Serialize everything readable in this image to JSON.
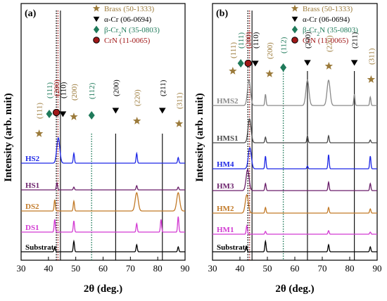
{
  "colors": {
    "brass": "#9b7a3a",
    "alpha_cr": "#000000",
    "beta_cr2n": "#1f7a5a",
    "crn": "#a01818",
    "HS2": "#1e28e6",
    "HS1": "#6a1f6a",
    "DS2": "#c27a28",
    "DS1": "#d23ad2",
    "Substrate": "#000000",
    "HMS2": "#8a8a8a",
    "HMS1": "#4a4a4a",
    "HM4": "#1e28e6",
    "HM3": "#6a1f6a",
    "HM2": "#c27a28",
    "HM1": "#d23ad2"
  },
  "legend": [
    {
      "key": "brass",
      "marker": "star-icon",
      "text": "Brass (50-1333)"
    },
    {
      "key": "alpha_cr",
      "marker": "triangle-down-icon",
      "text": "α-Cr (06-0694)"
    },
    {
      "key": "beta_cr2n",
      "marker": "diamond-icon",
      "text": "β-Cr",
      "sub": "2",
      "tail": "N (35-0803)"
    },
    {
      "key": "crn",
      "marker": "circle-icon",
      "text": "CrN (11-0065)"
    }
  ],
  "chart_data": [
    {
      "type": "line",
      "panel_label": "(a)",
      "xlabel": "2θ (deg.)",
      "ylabel": "Intensity (arb. nuit)",
      "xlim": [
        30,
        90
      ],
      "xticks": [
        30,
        40,
        50,
        60,
        70,
        80,
        90
      ],
      "y_ticks_shown": false,
      "reference_lines": [
        {
          "x": 42.9,
          "style": "dotted",
          "color": "#000000"
        },
        {
          "x": 43.5,
          "style": "dotted",
          "color": "#a01818"
        },
        {
          "x": 44.4,
          "style": "solid",
          "color": "#000000"
        },
        {
          "x": 55.8,
          "style": "dotted",
          "color": "#1f7a5a"
        },
        {
          "x": 64.6,
          "style": "solid",
          "color": "#000000"
        },
        {
          "x": 81.7,
          "style": "solid",
          "color": "#000000"
        }
      ],
      "peak_markers": [
        {
          "x": 36.6,
          "marker": "star-icon",
          "phase": "brass",
          "label": "(111)"
        },
        {
          "x": 40.3,
          "marker": "diamond-icon",
          "phase": "beta_cr2n",
          "label": "(111)"
        },
        {
          "x": 42.9,
          "marker": "circle-icon",
          "phase": "crn",
          "label": "(200)"
        },
        {
          "x": 45.3,
          "marker": "triangle-down-icon",
          "phase": "alpha_cr",
          "label": "(110)"
        },
        {
          "x": 49.3,
          "marker": "star-icon",
          "phase": "brass",
          "label": "(200)"
        },
        {
          "x": 55.8,
          "marker": "diamond-icon",
          "phase": "beta_cr2n",
          "label": "(112)"
        },
        {
          "x": 64.6,
          "marker": "triangle-down-icon",
          "phase": "alpha_cr",
          "label": "(200)"
        },
        {
          "x": 72.4,
          "marker": "star-icon",
          "phase": "brass",
          "label": "(220)"
        },
        {
          "x": 81.7,
          "marker": "triangle-down-icon",
          "phase": "alpha_cr",
          "label": "(211)"
        },
        {
          "x": 87.8,
          "marker": "star-icon",
          "phase": "brass",
          "label": "(311)"
        }
      ],
      "series": [
        {
          "name": "Substrate",
          "peaks": [
            [
              42.3,
              7
            ],
            [
              49.3,
              15
            ],
            [
              72.3,
              10
            ],
            [
              87.5,
              7
            ]
          ]
        },
        {
          "name": "DS1",
          "peaks": [
            [
              42.3,
              18
            ],
            [
              49.3,
              16
            ],
            [
              72.3,
              12
            ],
            [
              81.2,
              18
            ],
            [
              87.5,
              22
            ]
          ]
        },
        {
          "name": "DS2",
          "peaks": [
            [
              42.3,
              16
            ],
            [
              49.3,
              14
            ],
            [
              72.3,
              26
            ],
            [
              87.5,
              26
            ]
          ]
        },
        {
          "name": "HS1",
          "peaks": [
            [
              43.1,
              10
            ],
            [
              49.3,
              4
            ],
            [
              72.3,
              6
            ],
            [
              87.5,
              4
            ]
          ]
        },
        {
          "name": "HS2",
          "peaks": [
            [
              43.6,
              36
            ],
            [
              49.3,
              14
            ],
            [
              72.3,
              14
            ],
            [
              87.5,
              8
            ]
          ]
        }
      ]
    },
    {
      "type": "line",
      "panel_label": "(b)",
      "xlabel": "2θ (deg.)",
      "ylabel": "Intensity (arb. nuit)",
      "xlim": [
        30,
        90
      ],
      "xticks": [
        30,
        40,
        50,
        60,
        70,
        80,
        90
      ],
      "y_ticks_shown": false,
      "reference_lines": [
        {
          "x": 42.9,
          "style": "dotted",
          "color": "#000000"
        },
        {
          "x": 43.5,
          "style": "dotted",
          "color": "#a01818"
        },
        {
          "x": 44.4,
          "style": "solid",
          "color": "#000000"
        },
        {
          "x": 55.8,
          "style": "dotted",
          "color": "#1f7a5a"
        },
        {
          "x": 64.6,
          "style": "solid",
          "color": "#000000"
        },
        {
          "x": 81.7,
          "style": "solid",
          "color": "#000000"
        }
      ],
      "peak_markers": [
        {
          "x": 37.4,
          "marker": "star-icon",
          "phase": "brass",
          "label": "(111)"
        },
        {
          "x": 40.3,
          "marker": "diamond-icon",
          "phase": "beta_cr2n",
          "label": "(111)"
        },
        {
          "x": 43.0,
          "marker": "circle-icon",
          "phase": "crn",
          "label": "(200)"
        },
        {
          "x": 45.6,
          "marker": "triangle-down-icon",
          "phase": "alpha_cr",
          "label": "(110)"
        },
        {
          "x": 50.8,
          "marker": "star-icon",
          "phase": "brass",
          "label": "(200)"
        },
        {
          "x": 55.8,
          "marker": "diamond-icon",
          "phase": "beta_cr2n",
          "label": "(112)"
        },
        {
          "x": 64.6,
          "marker": "triangle-down-icon",
          "phase": "alpha_cr",
          "label": "(200)"
        },
        {
          "x": 72.4,
          "marker": "star-icon",
          "phase": "brass",
          "label": "(220)"
        },
        {
          "x": 81.7,
          "marker": "triangle-down-icon",
          "phase": "alpha_cr",
          "label": "(211)"
        },
        {
          "x": 87.8,
          "marker": "star-icon",
          "phase": "brass",
          "label": "(311)"
        }
      ],
      "series": [
        {
          "name": "Substrate",
          "peaks": [
            [
              42.3,
              8
            ],
            [
              49.3,
              15
            ],
            [
              72.3,
              10
            ],
            [
              87.5,
              7
            ]
          ]
        },
        {
          "name": "HM1",
          "peaks": [
            [
              42.5,
              12
            ],
            [
              49.3,
              4
            ],
            [
              72.3,
              5
            ],
            [
              87.5,
              3
            ]
          ]
        },
        {
          "name": "HM2",
          "peaks": [
            [
              42.5,
              26
            ],
            [
              49.3,
              8
            ],
            [
              72.3,
              8
            ],
            [
              87.5,
              6
            ]
          ]
        },
        {
          "name": "HM3",
          "peaks": [
            [
              42.8,
              30
            ],
            [
              49.3,
              10
            ],
            [
              72.3,
              12
            ],
            [
              87.5,
              10
            ]
          ]
        },
        {
          "name": "HM4",
          "peaks": [
            [
              43.6,
              30
            ],
            [
              49.3,
              18
            ],
            [
              64.6,
              4
            ],
            [
              72.3,
              20
            ],
            [
              87.5,
              18
            ]
          ]
        },
        {
          "name": "HMS1",
          "peaks": [
            [
              43.5,
              34
            ],
            [
              49.3,
              8
            ],
            [
              64.6,
              10
            ],
            [
              72.3,
              10
            ],
            [
              87.5,
              4
            ]
          ]
        },
        {
          "name": "HMS2",
          "peaks": [
            [
              43.3,
              36
            ],
            [
              49.3,
              16
            ],
            [
              64.6,
              36
            ],
            [
              72.3,
              36
            ],
            [
              81.7,
              16
            ],
            [
              87.5,
              12
            ]
          ]
        }
      ]
    }
  ]
}
